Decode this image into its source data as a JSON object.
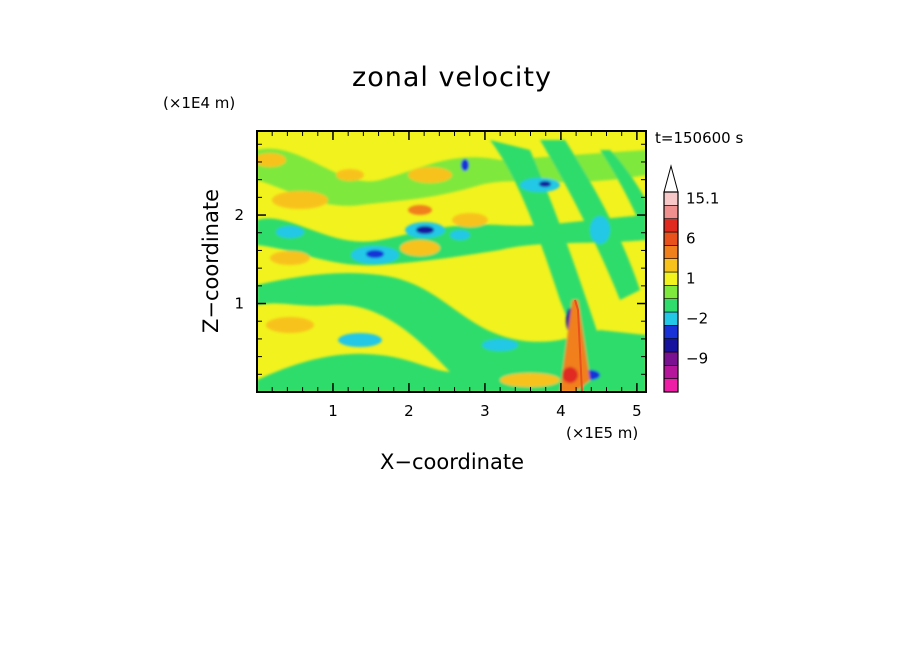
{
  "chart_data": {
    "type": "heatmap",
    "title": "zonal velocity",
    "xlabel": "X−coordinate",
    "ylabel": "Z−coordinate",
    "x_unit": "(×1E5 m)",
    "y_unit": "(×1E4 m)",
    "time_label": "t=150600 s",
    "xlim": [
      0,
      5.12
    ],
    "ylim": [
      0,
      2.95
    ],
    "x_ticks": [
      1,
      2,
      3,
      4,
      5
    ],
    "y_ticks": [
      1,
      2
    ],
    "x_tick_labels": [
      "1",
      "2",
      "3",
      "4",
      "5"
    ],
    "y_tick_labels": [
      "1",
      "2"
    ],
    "colorbar": {
      "levels": [
        -15,
        -12,
        -9,
        -6,
        -4,
        -2,
        -1,
        0,
        1,
        2,
        4,
        6,
        9,
        12,
        15.1
      ],
      "colors": [
        "#ee1ea6",
        "#b4159a",
        "#7a1190",
        "#18139e",
        "#1932d8",
        "#22c8e6",
        "#2fdc6c",
        "#7fe83c",
        "#f2f21e",
        "#f8c21c",
        "#f07f1e",
        "#e8501c",
        "#e02a20",
        "#f0908e",
        "#f8c8c8"
      ],
      "tick_labels": [
        "15.1",
        "6",
        "1",
        "−2",
        "−9"
      ],
      "tick_values": [
        15.1,
        6,
        1,
        -2,
        -9
      ]
    }
  }
}
